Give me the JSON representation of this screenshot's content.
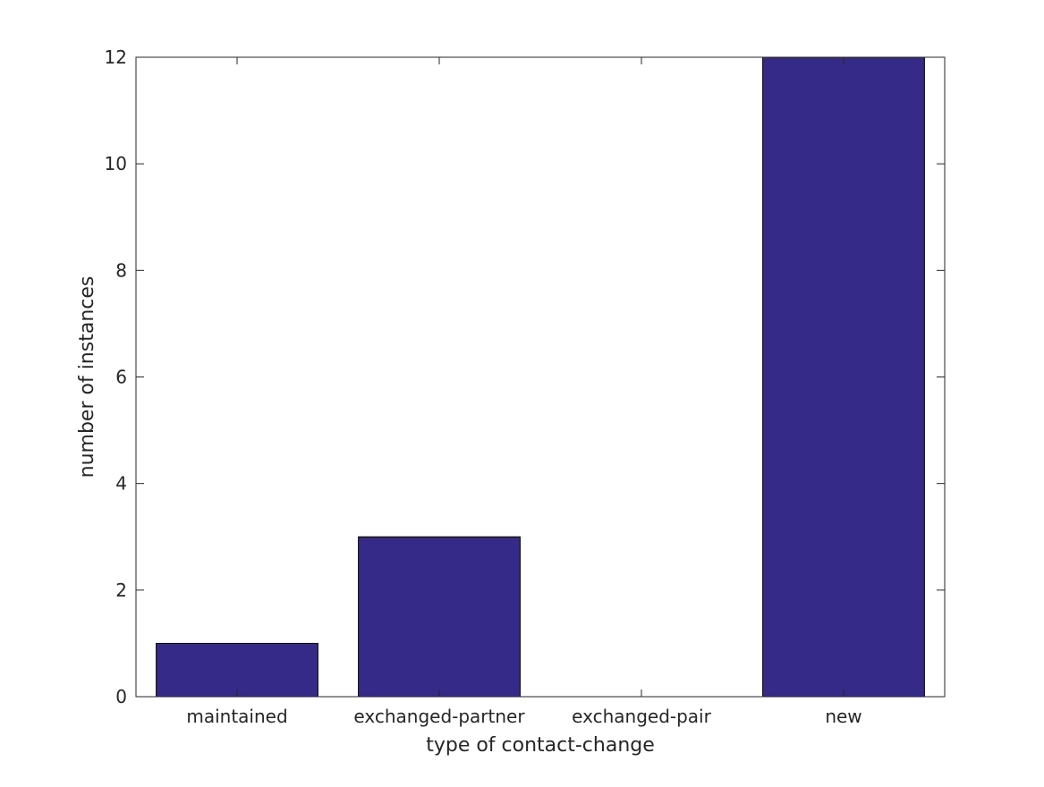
{
  "chart_data": {
    "type": "bar",
    "categories": [
      "maintained",
      "exchanged-partner",
      "exchanged-pair",
      "new"
    ],
    "values": [
      1,
      3,
      0,
      12
    ],
    "xlabel": "type of contact-change",
    "ylabel": "number of instances",
    "ylim": [
      0,
      12
    ],
    "yticks": [
      "0",
      "2",
      "4",
      "6",
      "8",
      "10",
      "12"
    ],
    "grid": false,
    "bar_color": "#352a87",
    "edge_color": "#000000"
  }
}
